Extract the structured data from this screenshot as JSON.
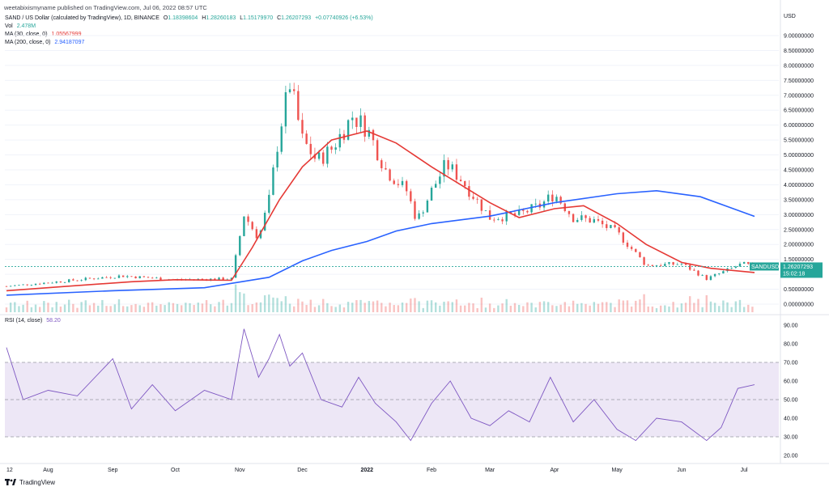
{
  "header": {
    "published": "weetabixismyname published on TradingView.com, Jul 06, 2022 08:57 UTC"
  },
  "legend": {
    "symbol": "SAND / US Dollar (calculated by TradingView), 1D, BINANCE",
    "o_label": "O",
    "o_value": "1.18398604",
    "h_label": "H",
    "h_value": "1.28260183",
    "l_label": "L",
    "l_value": "1.15179970",
    "c_label": "C",
    "c_value": "1.26207293",
    "change": "+0.07740926 (+6.53%)",
    "vol_label": "Vol",
    "vol_value": "2.478M",
    "ma30_label": "MA (30, close, 0)",
    "ma30_value": "1.05567999",
    "ma200_label": "MA (200, close, 0)",
    "ma200_value": "2.94187097",
    "rsi_label": "RSI (14, close)",
    "rsi_value": "58.20"
  },
  "price_axis": {
    "currency": "USD",
    "ticks": [
      "9.00000000",
      "8.50000000",
      "8.00000000",
      "7.50000000",
      "7.00000000",
      "6.50000000",
      "6.00000000",
      "5.50000000",
      "5.00000000",
      "4.50000000",
      "4.00000000",
      "3.50000000",
      "3.00000000",
      "2.50000000",
      "2.00000000",
      "1.50000000",
      "1.00000000",
      "0.50000000",
      "0.00000000"
    ],
    "badge_symbol": "SANDUSD",
    "badge_price": "1.26207293",
    "badge_countdown": "15:02:18"
  },
  "rsi_axis": {
    "ticks": [
      "90.00",
      "80.00",
      "70.00",
      "60.00",
      "50.00",
      "40.00",
      "30.00",
      "20.00"
    ]
  },
  "time_axis": {
    "labels": [
      "12",
      "Aug",
      "Sep",
      "Oct",
      "Nov",
      "Dec",
      "2022",
      "Feb",
      "Mar",
      "Apr",
      "May",
      "Jun",
      "Jul"
    ]
  },
  "footer": {
    "brand": "TradingView"
  },
  "colors": {
    "up": "#26a69a",
    "down": "#ef5350",
    "ma30": "#e53935",
    "ma200": "#2962ff",
    "rsi_line": "#7e57c2",
    "rsi_band": "#ede7f6",
    "badge": "#26a69a"
  },
  "chart_data": [
    {
      "type": "line",
      "title": "SAND / US Dollar (calculated by TradingView), 1D, BINANCE",
      "ylabel": "USD",
      "ylim": [
        0,
        9
      ],
      "x_range": [
        "2021-07-12",
        "2022-07-06"
      ],
      "series": [
        {
          "name": "MA (30, close, 0)",
          "x": [
            "2021-07-12",
            "2021-08-10",
            "2021-09-10",
            "2021-10-01",
            "2021-10-28",
            "2021-11-07",
            "2021-11-20",
            "2021-12-01",
            "2021-12-15",
            "2022-01-01",
            "2022-01-15",
            "2022-02-01",
            "2022-02-15",
            "2022-03-01",
            "2022-03-15",
            "2022-04-01",
            "2022-04-15",
            "2022-05-01",
            "2022-05-15",
            "2022-06-01",
            "2022-06-15",
            "2022-07-06"
          ],
          "values": [
            0.45,
            0.6,
            0.75,
            0.82,
            0.8,
            1.9,
            3.5,
            4.6,
            5.5,
            5.8,
            5.4,
            4.6,
            4.0,
            3.4,
            2.9,
            3.2,
            3.3,
            2.7,
            2.0,
            1.4,
            1.2,
            1.06
          ]
        },
        {
          "name": "MA (200, close, 0)",
          "x": [
            "2021-07-12",
            "2021-09-01",
            "2021-10-15",
            "2021-11-15",
            "2021-12-01",
            "2021-12-15",
            "2022-01-01",
            "2022-01-15",
            "2022-02-01",
            "2022-03-01",
            "2022-04-01",
            "2022-05-01",
            "2022-05-20",
            "2022-06-10",
            "2022-07-06"
          ],
          "values": [
            0.3,
            0.45,
            0.55,
            0.9,
            1.45,
            1.8,
            2.1,
            2.45,
            2.7,
            2.95,
            3.4,
            3.7,
            3.8,
            3.6,
            2.94
          ]
        },
        {
          "name": "Close",
          "x": [
            "2021-07-12",
            "2021-08-05",
            "2021-09-05",
            "2021-10-01",
            "2021-10-28",
            "2021-11-03",
            "2021-11-10",
            "2021-11-15",
            "2021-11-20",
            "2021-11-25",
            "2021-12-01",
            "2021-12-08",
            "2021-12-15",
            "2021-12-25",
            "2022-01-01",
            "2022-01-10",
            "2022-01-20",
            "2022-01-25",
            "2022-02-01",
            "2022-02-08",
            "2022-02-15",
            "2022-03-01",
            "2022-03-15",
            "2022-03-25",
            "2022-04-01",
            "2022-04-10",
            "2022-04-20",
            "2022-05-01",
            "2022-05-10",
            "2022-05-15",
            "2022-06-01",
            "2022-06-13",
            "2022-06-20",
            "2022-06-30",
            "2022-07-06"
          ],
          "values": [
            0.6,
            0.75,
            0.95,
            0.82,
            0.85,
            3.0,
            2.2,
            3.5,
            5.8,
            7.4,
            5.5,
            4.8,
            5.2,
            6.3,
            5.9,
            4.5,
            3.8,
            2.8,
            3.8,
            4.7,
            4.2,
            2.9,
            3.0,
            3.3,
            3.7,
            2.9,
            2.8,
            2.4,
            1.7,
            1.3,
            1.35,
            0.85,
            1.05,
            1.35,
            1.26
          ]
        }
      ]
    },
    {
      "type": "line",
      "title": "RSI (14, close)",
      "ylim": [
        20,
        90
      ],
      "bands": [
        30,
        70
      ],
      "series": [
        {
          "name": "RSI (14, close)",
          "x": [
            "2021-07-12",
            "2021-07-20",
            "2021-08-01",
            "2021-08-15",
            "2021-09-01",
            "2021-09-10",
            "2021-09-20",
            "2021-10-01",
            "2021-10-15",
            "2021-10-28",
            "2021-11-03",
            "2021-11-10",
            "2021-11-15",
            "2021-11-20",
            "2021-11-25",
            "2021-12-01",
            "2021-12-10",
            "2021-12-20",
            "2021-12-28",
            "2022-01-05",
            "2022-01-15",
            "2022-01-22",
            "2022-02-01",
            "2022-02-10",
            "2022-02-20",
            "2022-03-01",
            "2022-03-10",
            "2022-03-20",
            "2022-03-30",
            "2022-04-10",
            "2022-04-20",
            "2022-05-01",
            "2022-05-10",
            "2022-05-20",
            "2022-06-01",
            "2022-06-13",
            "2022-06-20",
            "2022-06-28",
            "2022-07-06"
          ],
          "values": [
            78,
            50,
            55,
            52,
            72,
            45,
            58,
            44,
            55,
            50,
            88,
            62,
            72,
            85,
            68,
            75,
            50,
            46,
            62,
            48,
            38,
            28,
            48,
            60,
            40,
            36,
            44,
            38,
            62,
            38,
            50,
            34,
            28,
            40,
            38,
            28,
            35,
            56,
            58
          ]
        }
      ]
    }
  ]
}
